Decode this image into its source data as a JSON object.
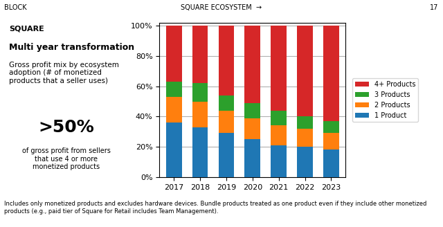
{
  "chart_data": {
    "type": "bar",
    "stacked": true,
    "title": "Multi year transformation",
    "subtitle": "Gross profit mix by ecosystem\nadoption (# of monetized\nproducts that a seller uses)",
    "annotations": [
      "BLOCK",
      "SQUARE ECOSYSTEM  →",
      "17",
      "SQUARE",
      ">50%",
      "of gross profit from sellers\nthat use 4 or more\nmonetized products",
      "Includes only monetized products and excludes hardware devices. Bundle products treated as one product even if they include other monetized products (e.g., paid tier of Square for Retail includes Team Management)."
    ],
    "categories": [
      "2017",
      "2018",
      "2019",
      "2020",
      "2021",
      "2022",
      "2023"
    ],
    "series": [
      {
        "name": "1 Product",
        "values": [
          36,
          33,
          29,
          25,
          21,
          20,
          18
        ]
      },
      {
        "name": "2 Products",
        "values": [
          17,
          17,
          15,
          14,
          13,
          12,
          11
        ]
      },
      {
        "name": "3 Products",
        "values": [
          10,
          12,
          10,
          10,
          10,
          8,
          8
        ]
      },
      {
        "name": "4+ Products",
        "values": [
          37,
          38,
          46,
          51,
          56,
          60,
          63
        ]
      }
    ],
    "ylim": [
      0,
      102
    ],
    "yticks": [
      {
        "value": 0,
        "label": "0%"
      },
      {
        "value": 20,
        "label": "20%"
      },
      {
        "value": 40,
        "label": "40%"
      },
      {
        "value": 60,
        "label": "60%"
      },
      {
        "value": 80,
        "label": "80%"
      },
      {
        "value": 100,
        "label": "100%"
      }
    ],
    "grid": true,
    "legend": "center left"
  }
}
